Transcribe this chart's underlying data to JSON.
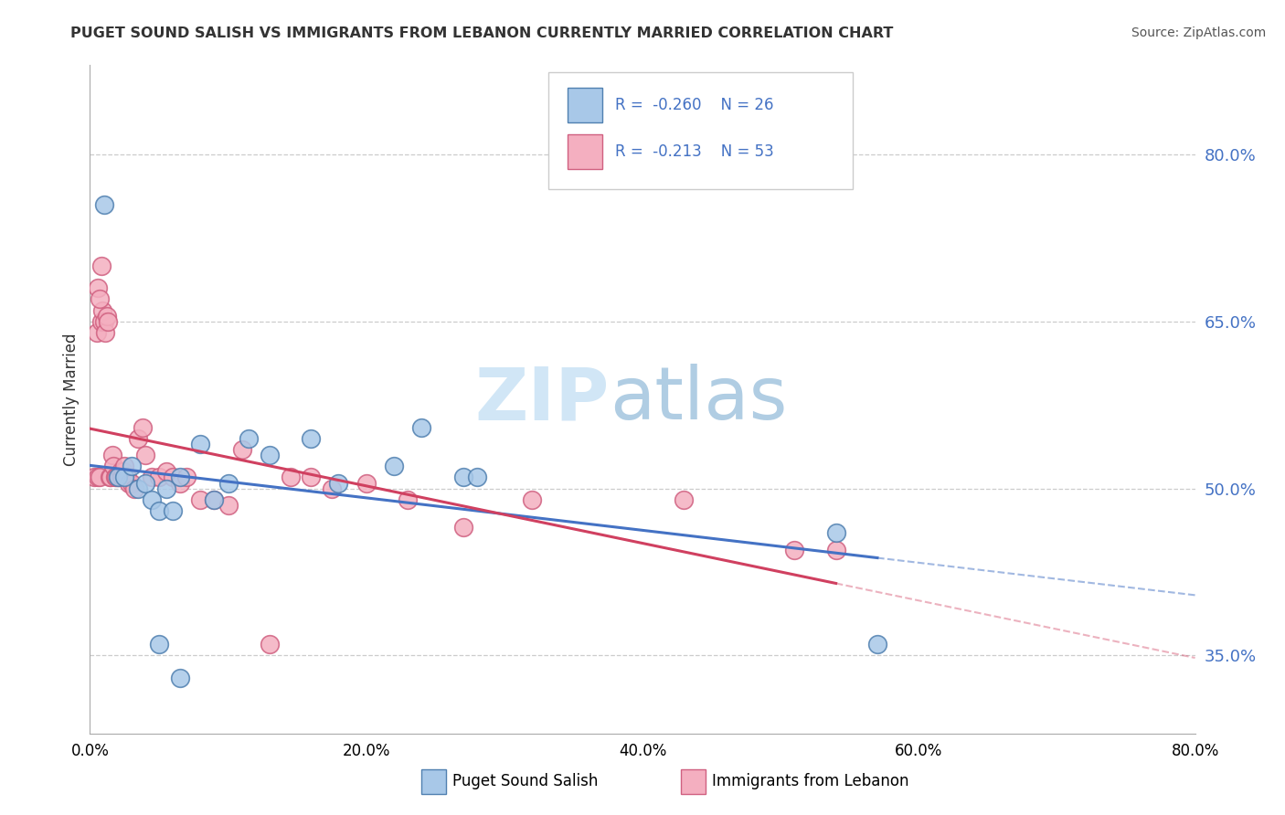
{
  "title": "PUGET SOUND SALISH VS IMMIGRANTS FROM LEBANON CURRENTLY MARRIED CORRELATION CHART",
  "source": "Source: ZipAtlas.com",
  "ylabel": "Currently Married",
  "legend_labels": [
    "Puget Sound Salish",
    "Immigrants from Lebanon"
  ],
  "r_blue": -0.26,
  "r_pink": -0.213,
  "n_blue": 26,
  "n_pink": 53,
  "color_blue": "#a8c8e8",
  "color_pink": "#f4afc0",
  "color_blue_edge": "#5080b0",
  "color_pink_edge": "#d06080",
  "color_blue_line": "#4472C4",
  "color_pink_line": "#d04060",
  "xlim": [
    0.0,
    0.8
  ],
  "ylim": [
    0.28,
    0.88
  ],
  "xtick_values": [
    0.0,
    0.2,
    0.4,
    0.6,
    0.8
  ],
  "xtick_labels": [
    "0.0%",
    "20.0%",
    "40.0%",
    "60.0%",
    "80.0%"
  ],
  "ytick_values": [
    0.35,
    0.5,
    0.65,
    0.8
  ],
  "ytick_labels": [
    "35.0%",
    "50.0%",
    "65.0%",
    "80.0%"
  ],
  "grid_color": "#cccccc",
  "blue_x": [
    0.01,
    0.02,
    0.025,
    0.03,
    0.035,
    0.04,
    0.045,
    0.05,
    0.055,
    0.065,
    0.08,
    0.09,
    0.1,
    0.115,
    0.13,
    0.16,
    0.18,
    0.22,
    0.24,
    0.27,
    0.28,
    0.54,
    0.57,
    0.05,
    0.065,
    0.06
  ],
  "blue_y": [
    0.755,
    0.51,
    0.51,
    0.52,
    0.5,
    0.505,
    0.49,
    0.48,
    0.5,
    0.51,
    0.54,
    0.49,
    0.505,
    0.545,
    0.53,
    0.545,
    0.505,
    0.52,
    0.555,
    0.51,
    0.51,
    0.46,
    0.36,
    0.36,
    0.33,
    0.48
  ],
  "pink_x": [
    0.003,
    0.005,
    0.006,
    0.007,
    0.008,
    0.009,
    0.01,
    0.011,
    0.012,
    0.013,
    0.014,
    0.015,
    0.016,
    0.017,
    0.018,
    0.019,
    0.02,
    0.021,
    0.022,
    0.023,
    0.024,
    0.025,
    0.027,
    0.028,
    0.03,
    0.032,
    0.035,
    0.038,
    0.04,
    0.045,
    0.05,
    0.055,
    0.06,
    0.065,
    0.07,
    0.08,
    0.09,
    0.1,
    0.11,
    0.13,
    0.145,
    0.16,
    0.175,
    0.2,
    0.23,
    0.27,
    0.32,
    0.43,
    0.51,
    0.54,
    0.006,
    0.007,
    0.008
  ],
  "pink_y": [
    0.51,
    0.64,
    0.51,
    0.51,
    0.65,
    0.66,
    0.65,
    0.64,
    0.655,
    0.65,
    0.51,
    0.51,
    0.53,
    0.52,
    0.51,
    0.51,
    0.51,
    0.51,
    0.515,
    0.51,
    0.515,
    0.52,
    0.51,
    0.505,
    0.505,
    0.5,
    0.545,
    0.555,
    0.53,
    0.51,
    0.51,
    0.515,
    0.51,
    0.505,
    0.51,
    0.49,
    0.49,
    0.485,
    0.535,
    0.36,
    0.51,
    0.51,
    0.5,
    0.505,
    0.49,
    0.465,
    0.49,
    0.49,
    0.445,
    0.445,
    0.68,
    0.67,
    0.7
  ]
}
